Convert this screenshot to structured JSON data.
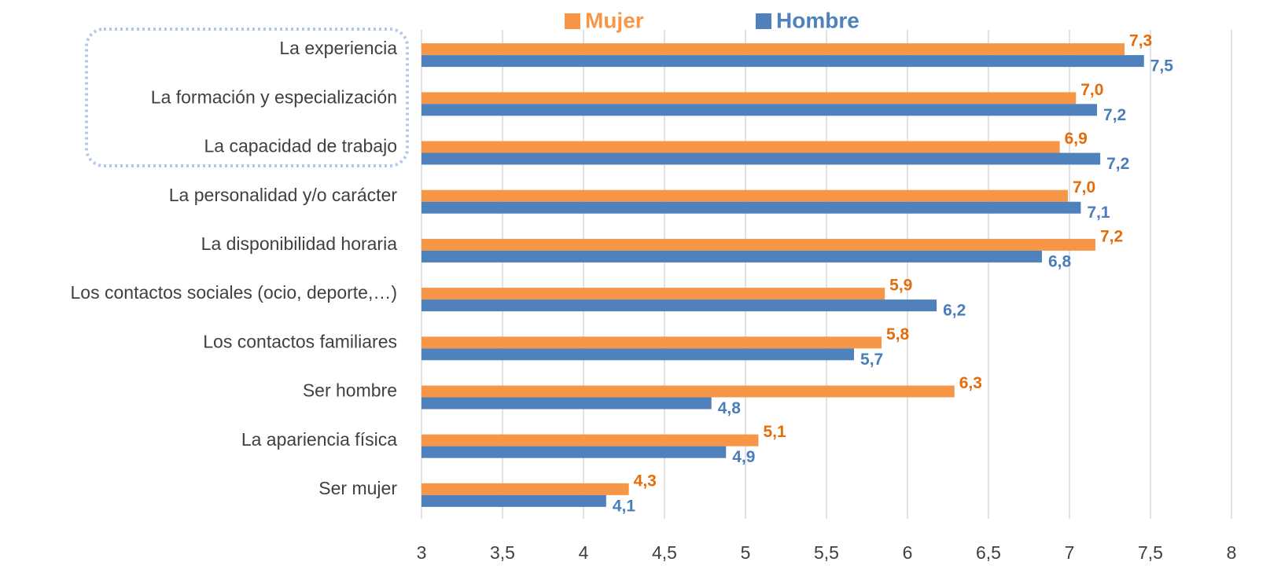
{
  "chart_data": {
    "type": "hbar",
    "categories": [
      "La experiencia",
      "La formación y especialización",
      "La capacidad de trabajo",
      "La personalidad y/o carácter",
      "La disponibilidad horaria",
      "Los contactos sociales (ocio, deporte,…)",
      "Los contactos familiares",
      "Ser hombre",
      "La apariencia física",
      "Ser mujer"
    ],
    "series": [
      {
        "name": "Mujer",
        "color": "#f79646",
        "label_color": "#e46c0a",
        "values": [
          7.34,
          7.04,
          6.94,
          6.99,
          7.16,
          5.86,
          5.84,
          6.29,
          5.08,
          4.28
        ],
        "value_labels": [
          "7,3",
          "7,0",
          "6,9",
          "7,0",
          "7,2",
          "5,9",
          "5,8",
          "6,3",
          "5,1",
          "4,3"
        ]
      },
      {
        "name": "Hombre",
        "color": "#4f81bd",
        "label_color": "#4a7ebb",
        "values": [
          7.46,
          7.17,
          7.19,
          7.07,
          6.83,
          6.18,
          5.67,
          4.79,
          4.88,
          4.14
        ],
        "value_labels": [
          "7,5",
          "7,2",
          "7,2",
          "7,1",
          "6,8",
          "6,2",
          "5,7",
          "4,8",
          "4,9",
          "4,1"
        ]
      }
    ],
    "xlim": [
      3,
      8
    ],
    "xticks": [
      3,
      {
        "value": 3.5,
        "label": "3,5"
      },
      4,
      {
        "value": 4.5,
        "label": "4,5"
      },
      5,
      {
        "value": 5.5,
        "label": "5,5"
      },
      6,
      {
        "value": 6.5,
        "label": "6,5"
      },
      7,
      {
        "value": 7.5,
        "label": "7,5"
      },
      8
    ],
    "grid": true,
    "legend": "top"
  }
}
